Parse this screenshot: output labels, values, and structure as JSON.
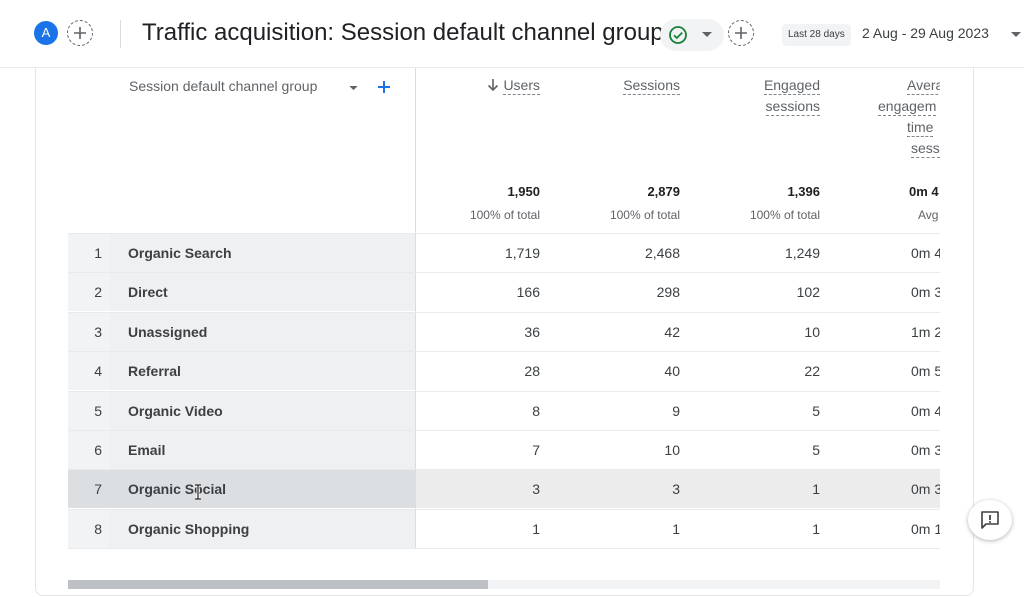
{
  "header": {
    "avatar_letter": "A",
    "title": "Traffic acquisition: Session default channel group",
    "date_label": "Last 28 days",
    "date_range": "2 Aug - 29 Aug 2023"
  },
  "table": {
    "dimension_header": "Session default channel group",
    "columns": [
      {
        "label_lines": [
          "Users"
        ],
        "sorted": true,
        "total": "1,950",
        "pct": "100% of total"
      },
      {
        "label_lines": [
          "Sessions"
        ],
        "sorted": false,
        "total": "2,879",
        "pct": "100% of total"
      },
      {
        "label_lines": [
          "Engaged",
          "sessions"
        ],
        "sorted": false,
        "total": "1,396",
        "pct": "100% of total"
      },
      {
        "label_lines": [
          "Avera",
          "engagem",
          "time",
          "sess"
        ],
        "sorted": false,
        "total": "0m 4",
        "pct": "Avg"
      }
    ],
    "rows": [
      {
        "idx": "1",
        "name": "Organic Search",
        "users": "1,719",
        "sessions": "2,468",
        "engaged": "1,249",
        "avg": "0m 4"
      },
      {
        "idx": "2",
        "name": "Direct",
        "users": "166",
        "sessions": "298",
        "engaged": "102",
        "avg": "0m 3"
      },
      {
        "idx": "3",
        "name": "Unassigned",
        "users": "36",
        "sessions": "42",
        "engaged": "10",
        "avg": "1m 2"
      },
      {
        "idx": "4",
        "name": "Referral",
        "users": "28",
        "sessions": "40",
        "engaged": "22",
        "avg": "0m 5"
      },
      {
        "idx": "5",
        "name": "Organic Video",
        "users": "8",
        "sessions": "9",
        "engaged": "5",
        "avg": "0m 4"
      },
      {
        "idx": "6",
        "name": "Email",
        "users": "7",
        "sessions": "10",
        "engaged": "5",
        "avg": "0m 3"
      },
      {
        "idx": "7",
        "name": "Organic Social",
        "users": "3",
        "sessions": "3",
        "engaged": "1",
        "avg": "0m 3"
      },
      {
        "idx": "8",
        "name": "Organic Shopping",
        "users": "1",
        "sessions": "1",
        "engaged": "1",
        "avg": "0m 1"
      }
    ]
  },
  "icons": {
    "add_comparison": "plus-circle-icon",
    "status": "check-circle-icon",
    "feedback": "feedback-icon"
  },
  "colors": {
    "accent": "#1a73e8",
    "success": "#188038"
  }
}
